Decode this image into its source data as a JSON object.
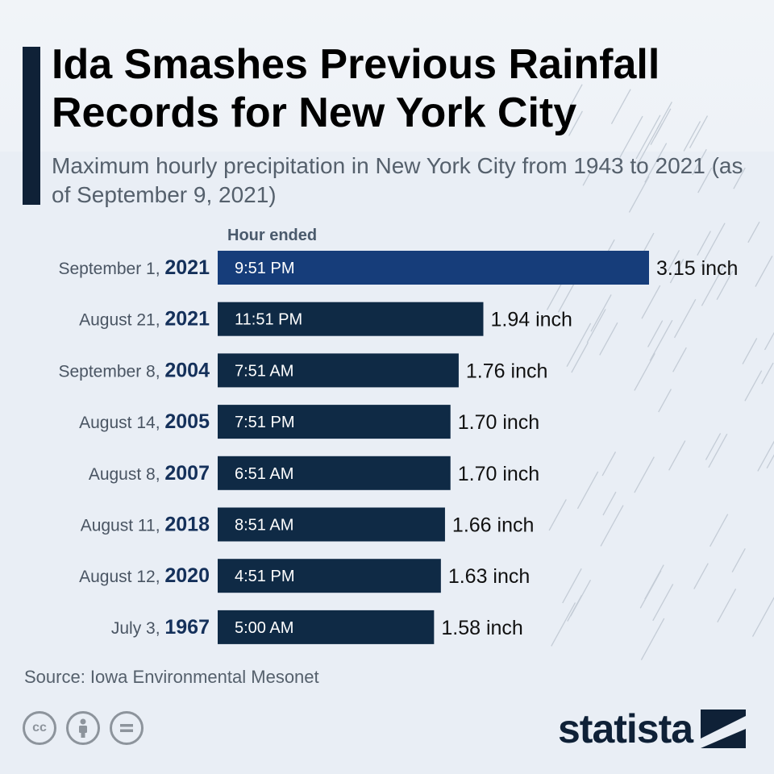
{
  "header": {
    "title": "Ida Smashes Previous Rainfall Records for New York City",
    "subtitle": "Maximum hourly precipitation in New York City from 1943 to 2021 (as of September 9, 2021)"
  },
  "chart_data": {
    "type": "bar",
    "orientation": "horizontal",
    "series_label": "Hour ended",
    "unit": "inch",
    "rows": [
      {
        "date": "September 1,",
        "year": "2021",
        "time": "9:51 PM",
        "value": 3.15,
        "value_label": "3.15 inch",
        "highlight": true
      },
      {
        "date": "August 21,",
        "year": "2021",
        "time": "11:51 PM",
        "value": 1.94,
        "value_label": "1.94 inch",
        "highlight": false
      },
      {
        "date": "September 8,",
        "year": "2004",
        "time": "7:51 AM",
        "value": 1.76,
        "value_label": "1.76 inch",
        "highlight": false
      },
      {
        "date": "August 14,",
        "year": "2005",
        "time": "7:51 PM",
        "value": 1.7,
        "value_label": "1.70 inch",
        "highlight": false
      },
      {
        "date": "August 8,",
        "year": "2007",
        "time": "6:51 AM",
        "value": 1.7,
        "value_label": "1.70 inch",
        "highlight": false
      },
      {
        "date": "August 11,",
        "year": "2018",
        "time": "8:51 AM",
        "value": 1.66,
        "value_label": "1.66 inch",
        "highlight": false
      },
      {
        "date": "August 12,",
        "year": "2020",
        "time": "4:51 PM",
        "value": 1.63,
        "value_label": "1.63 inch",
        "highlight": false
      },
      {
        "date": "July 3,",
        "year": "1967",
        "time": "5:00 AM",
        "value": 1.58,
        "value_label": "1.58 inch",
        "highlight": false
      }
    ],
    "colors": {
      "bar": "#0f2a45",
      "highlight_bar": "#163d7a",
      "year": "#14305a"
    }
  },
  "footer": {
    "source": "Source: Iowa Environmental Mesonet",
    "logo": "statista",
    "license_icons": [
      "cc-icon",
      "attribution-icon",
      "no-derivatives-icon"
    ]
  }
}
